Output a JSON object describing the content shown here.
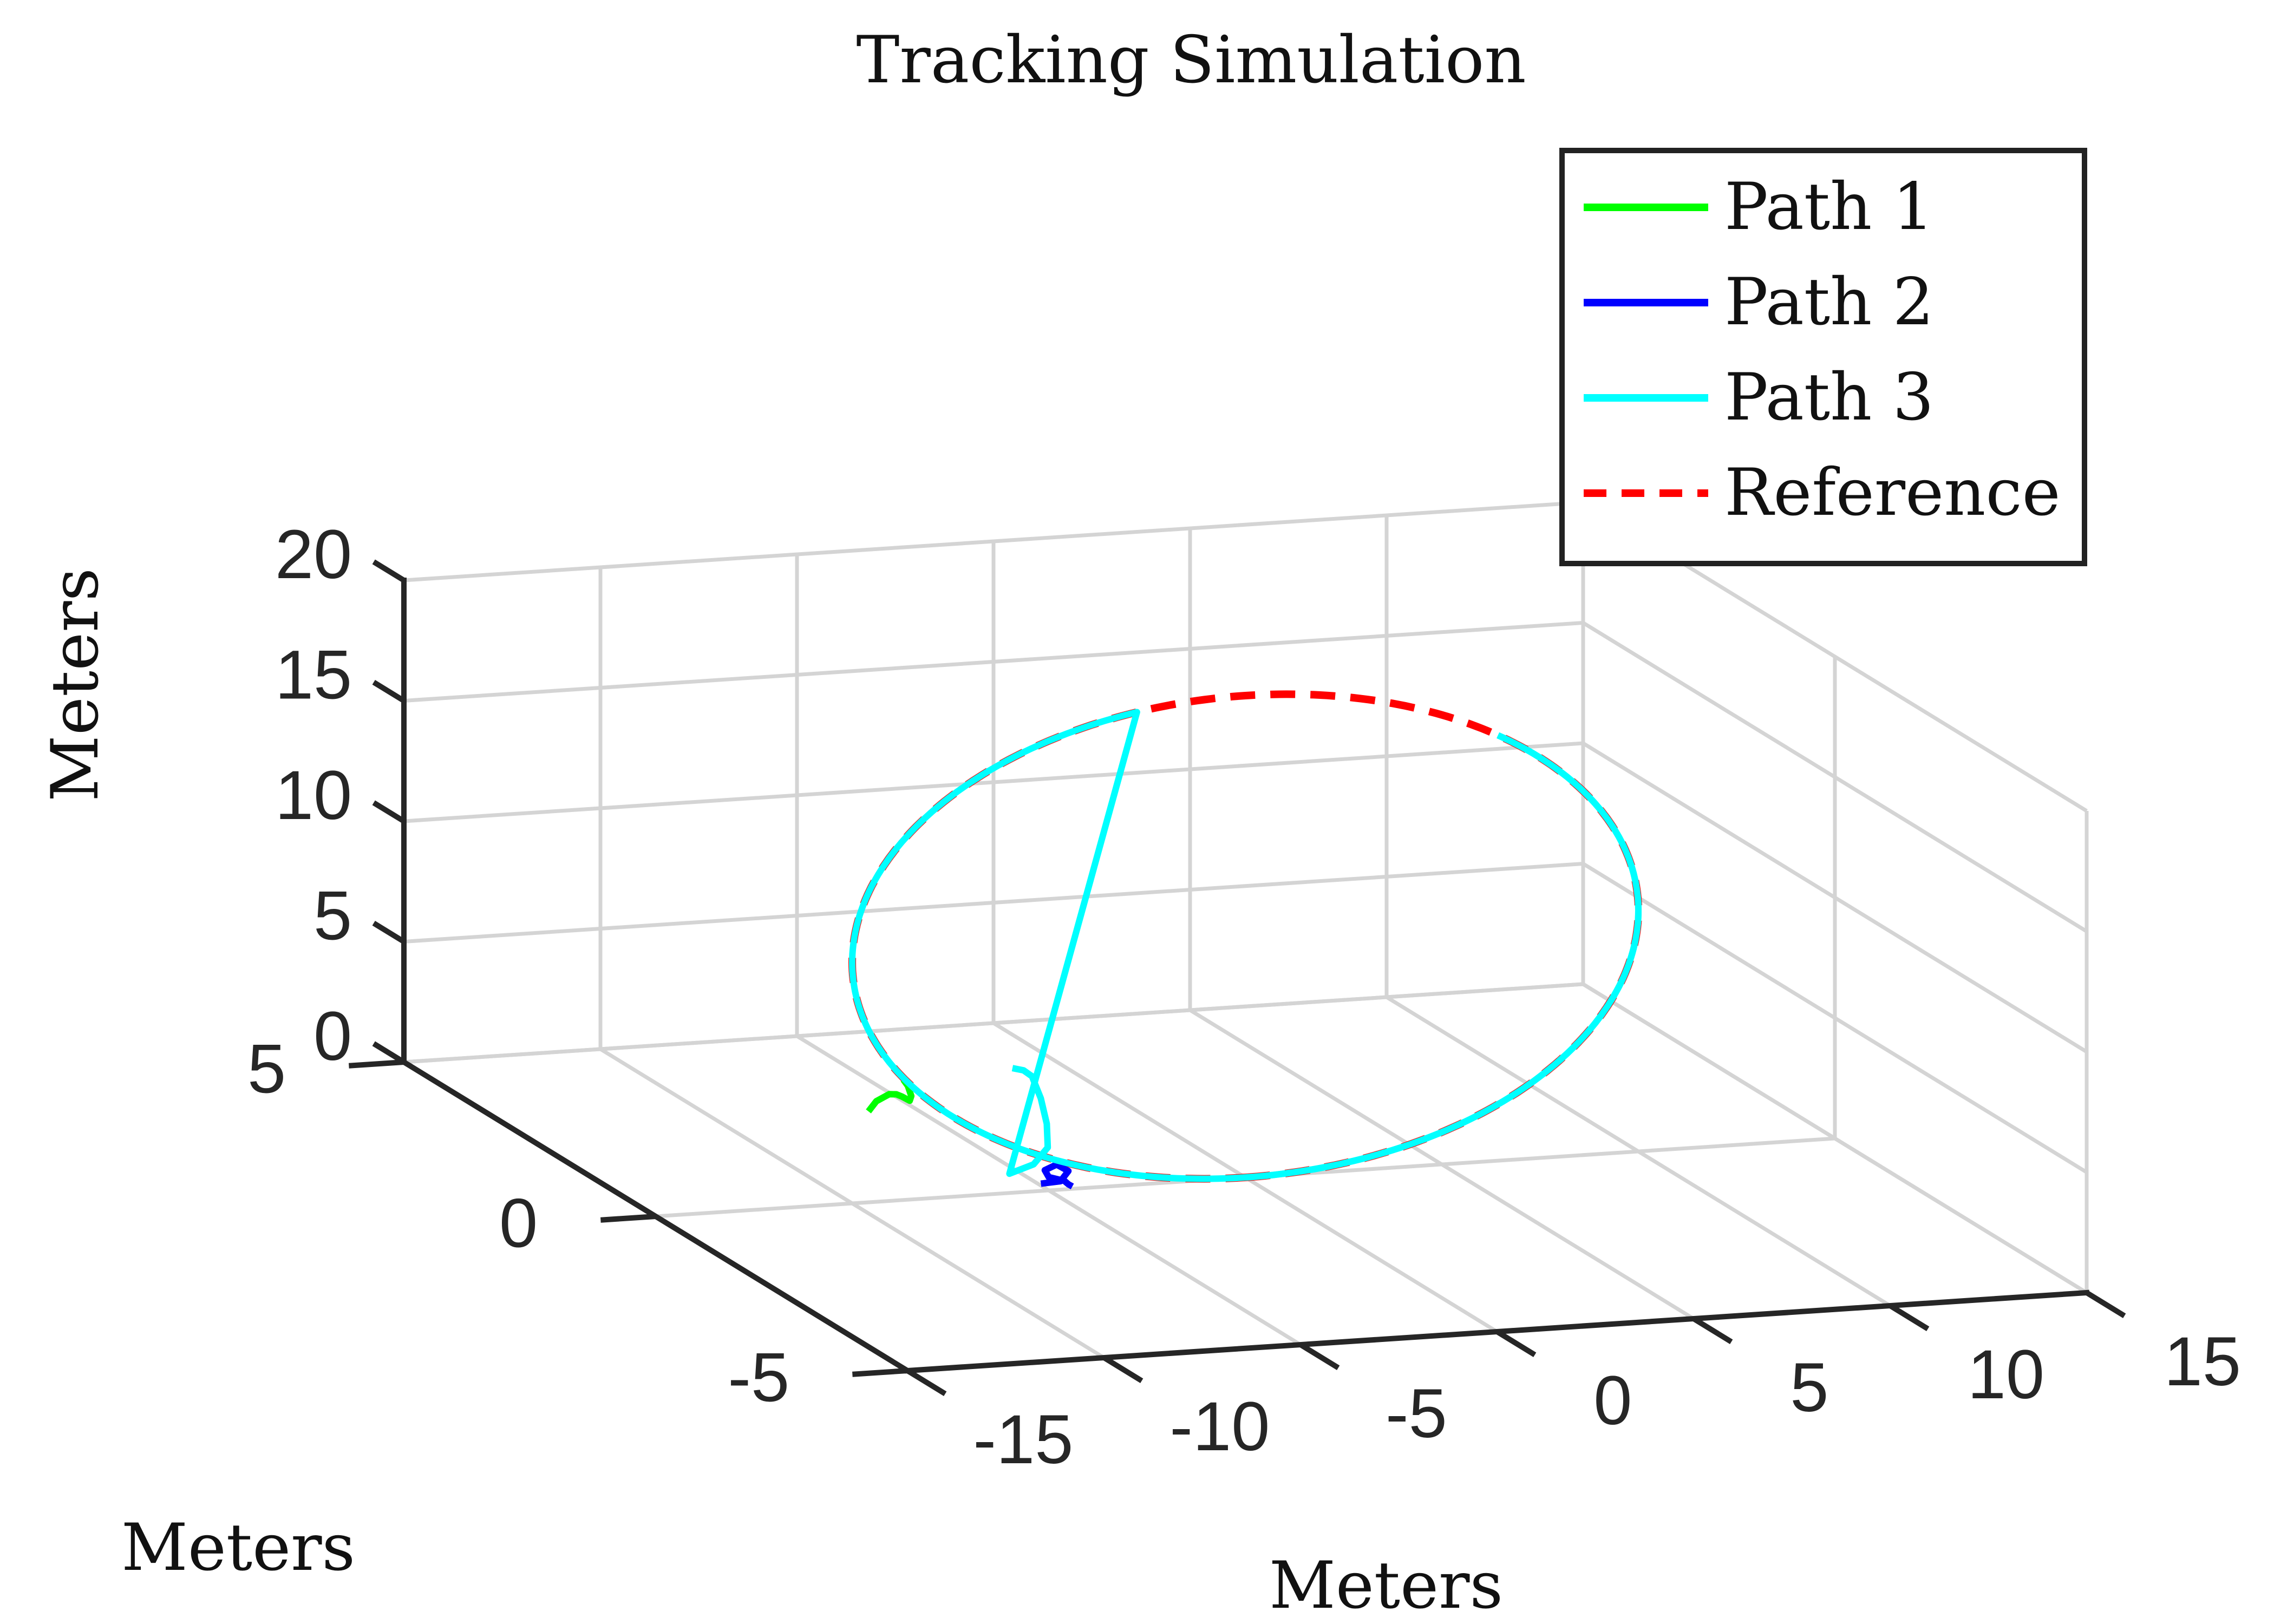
{
  "chart_data": {
    "type": "line",
    "projection": "3d",
    "title": "Tracking Simulation",
    "xlabel": "Meters",
    "ylabel": "Meters",
    "zlabel": "Meters",
    "xlim": [
      -15,
      15
    ],
    "ylim": [
      -5,
      5
    ],
    "zlim": [
      0,
      20
    ],
    "xticks": [
      "-15",
      "-10",
      "-5",
      "0",
      "5",
      "10",
      "15"
    ],
    "yticks": [
      "-5",
      "0",
      "5"
    ],
    "zticks": [
      "0",
      "5",
      "10",
      "15",
      "20"
    ],
    "grid": true,
    "legend_position": "top-right",
    "reference_circle": {
      "center_x": 0,
      "center_y": 0,
      "center_z": 10,
      "radius": 10
    },
    "series": [
      {
        "name": "Path 1",
        "color": "#00ff00",
        "style": "solid",
        "points": [
          [
            -6,
            2.8,
            -0.2
          ],
          [
            -5.8,
            2.8,
            0.2
          ],
          [
            -5.6,
            2.7,
            0.6
          ],
          [
            -5.8,
            2.4,
            1.0
          ],
          [
            -6.3,
            1.9,
            1.6
          ],
          [
            -7.0,
            1.2,
            2.4
          ],
          [
            -7.6,
            0.7,
            3.3
          ],
          [
            -8.2,
            0.3,
            4.3
          ],
          [
            -8.7,
            0,
            5.0
          ]
        ]
      },
      {
        "name": "Path 2",
        "color": "#0000ff",
        "style": "solid",
        "points": [
          [
            -5.2,
            0,
            0.3
          ],
          [
            -4.7,
            0,
            0.35
          ],
          [
            -4.5,
            0,
            0.75
          ],
          [
            -4.8,
            0,
            1.05
          ],
          [
            -5.1,
            0,
            0.85
          ],
          [
            -5.0,
            0,
            0.55
          ],
          [
            -4.6,
            0,
            0.35
          ],
          [
            -4.5,
            0,
            0.2
          ],
          [
            -4.4,
            0,
            0.1
          ]
        ]
      },
      {
        "name": "Path 3",
        "color": "#00ffff",
        "style": "solid",
        "points": [
          [
            -0.8,
            4.0,
            -0.5
          ],
          [
            -0.9,
            3.7,
            -0.2
          ],
          [
            -1.2,
            3.3,
            0.1
          ],
          [
            -2.0,
            2.5,
            0.3
          ],
          [
            -3.0,
            1.6,
            0.5
          ],
          [
            -4.0,
            0.8,
            0.65
          ],
          [
            -5.0,
            0.3,
            0.7
          ],
          [
            -6.0,
            0,
            0.8
          ]
        ]
      },
      {
        "name": "Reference",
        "color": "#ff0000",
        "style": "dashed"
      }
    ]
  }
}
